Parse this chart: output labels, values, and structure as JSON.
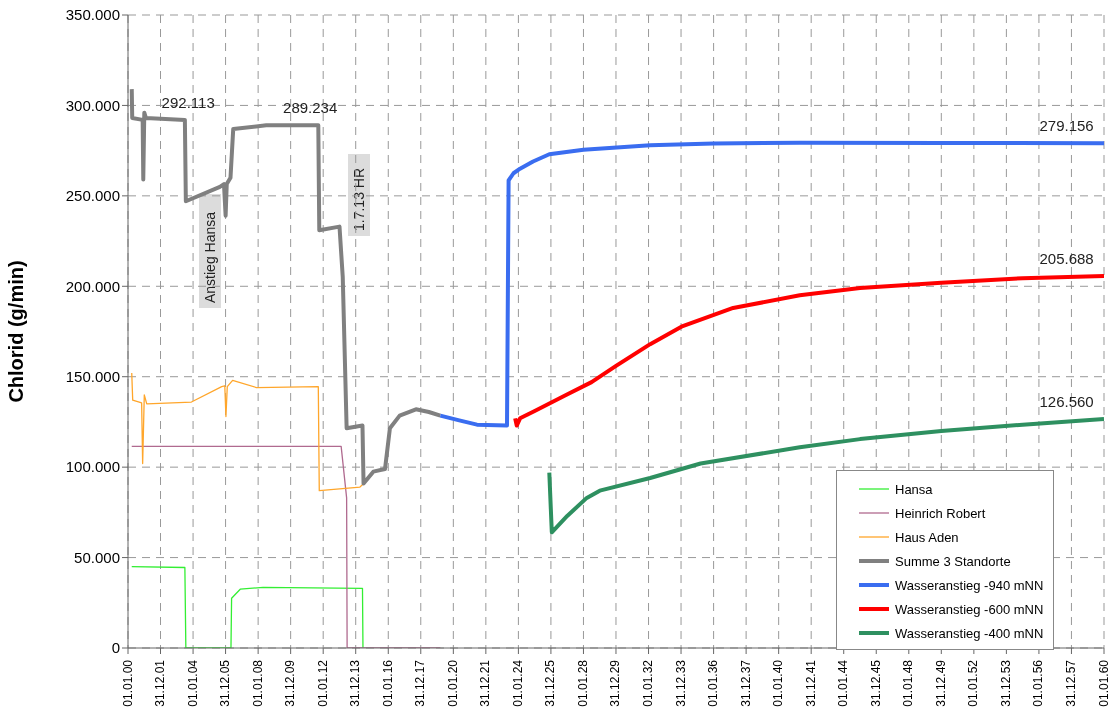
{
  "chart_data": {
    "type": "line",
    "ylabel": "Chlorid  (g/min)",
    "xlim": [
      "2000-01-01",
      "2060-01-01"
    ],
    "xticks": [
      {
        "value": "2000-01-01",
        "label": "01.01.00"
      },
      {
        "value": "2001-12-31",
        "label": "31.12.01"
      },
      {
        "value": "2004-01-01",
        "label": "01.01.04"
      },
      {
        "value": "2005-12-31",
        "label": "31.12.05"
      },
      {
        "value": "2008-01-01",
        "label": "01.01.08"
      },
      {
        "value": "2009-12-31",
        "label": "31.12.09"
      },
      {
        "value": "2012-01-01",
        "label": "01.01.12"
      },
      {
        "value": "2013-12-31",
        "label": "31.12.13"
      },
      {
        "value": "2016-01-01",
        "label": "01.01.16"
      },
      {
        "value": "2017-12-31",
        "label": "31.12.17"
      },
      {
        "value": "2020-01-01",
        "label": "01.01.20"
      },
      {
        "value": "2021-12-31",
        "label": "31.12.21"
      },
      {
        "value": "2024-01-01",
        "label": "01.01.24"
      },
      {
        "value": "2025-12-31",
        "label": "31.12.25"
      },
      {
        "value": "2028-01-01",
        "label": "01.01.28"
      },
      {
        "value": "2029-12-31",
        "label": "31.12.29"
      },
      {
        "value": "2032-01-01",
        "label": "01.01.32"
      },
      {
        "value": "2033-12-31",
        "label": "31.12.33"
      },
      {
        "value": "2036-01-01",
        "label": "01.01.36"
      },
      {
        "value": "2037-12-31",
        "label": "31.12.37"
      },
      {
        "value": "2040-01-01",
        "label": "01.01.40"
      },
      {
        "value": "2041-12-31",
        "label": "31.12.41"
      },
      {
        "value": "2044-01-01",
        "label": "01.01.44"
      },
      {
        "value": "2045-12-31",
        "label": "31.12.45"
      },
      {
        "value": "2048-01-01",
        "label": "01.01.48"
      },
      {
        "value": "2049-12-31",
        "label": "31.12.49"
      },
      {
        "value": "2052-01-01",
        "label": "01.01.52"
      },
      {
        "value": "2053-12-31",
        "label": "31.12.53"
      },
      {
        "value": "2056-01-01",
        "label": "01.01.56"
      },
      {
        "value": "2057-12-31",
        "label": "31.12.57"
      },
      {
        "value": "2060-01-01",
        "label": "01.01.60"
      }
    ],
    "ylim": [
      0,
      350000
    ],
    "yticks": [
      0,
      {
        "value": 50000,
        "label": "50.000"
      },
      {
        "value": 100000,
        "label": "100.000"
      },
      {
        "value": 150000,
        "label": "150.000"
      },
      {
        "value": 200000,
        "label": "200.000"
      },
      {
        "value": 250000,
        "label": "250.000"
      },
      {
        "value": 300000,
        "label": "300.000"
      },
      {
        "value": 350000,
        "label": "350.000"
      }
    ],
    "grid": true,
    "legend": "bottom right",
    "series": [
      {
        "name": "Hansa",
        "color": "#33ee33",
        "x": [
          "2000-03-25",
          "2003-07-01",
          "2003-07-23",
          "2006-05-01",
          "2006-05-15",
          "2006-11-25",
          "2008-04-20",
          "2014-06-01",
          "2014-06-12"
        ],
        "values": [
          45000,
          44500,
          0,
          0,
          27500,
          32500,
          33500,
          33000,
          0
        ]
      },
      {
        "name": "Heinrich Robert",
        "color": "#b06a8f",
        "x": [
          "2000-03-25",
          "2013-02-07",
          "2013-06-10",
          "2013-06-21",
          "2019-03-15"
        ],
        "values": [
          111500,
          111500,
          83000,
          0,
          0
        ]
      },
      {
        "name": "Haus Aden",
        "color": "#ffa62b",
        "x": [
          "2000-03-25",
          "2000-04-16",
          "2000-11-02",
          "2000-11-25",
          "2001-01-01",
          "2001-02-25",
          "2003-11-25",
          "2005-10-05",
          "2005-12-13",
          "2006-01-08",
          "2006-02-07",
          "2006-06-07",
          "2007-11-25",
          "2011-09-13",
          "2011-10-05",
          "2014-04-05",
          "2014-06-10"
        ],
        "values": [
          152000,
          137000,
          135500,
          102000,
          140000,
          135000,
          136000,
          144500,
          145000,
          128000,
          144500,
          148000,
          144000,
          144500,
          87000,
          89000,
          90500
        ]
      },
      {
        "name": "Summe 3 Standorte",
        "color": "#808080",
        "x": [
          "2000-03-25",
          "2000-04-05",
          "2000-11-25",
          "2000-12-09",
          "2001-01-01",
          "2001-02-07",
          "2003-07-01",
          "2003-07-23",
          "2005-08-25",
          "2005-11-25",
          "2006-01-01",
          "2006-01-26",
          "2006-04-20",
          "2006-06-21",
          "2008-07-01",
          "2011-09-13",
          "2011-10-05",
          "2013-01-01",
          "2013-03-15",
          "2013-06-10",
          "2014-06-01",
          "2014-06-25",
          "2015-01-30",
          "2015-10-20",
          "2016-02-07",
          "2016-09-13",
          "2017-09-13",
          "2018-07-01",
          "2019-03-15"
        ],
        "values": [
          309000,
          293000,
          292000,
          259000,
          296000,
          293000,
          292000,
          247000,
          255000,
          256500,
          239000,
          256500,
          260000,
          287000,
          289000,
          289000,
          231000,
          233000,
          205000,
          121500,
          123000,
          91000,
          97500,
          99000,
          121500,
          128500,
          132000,
          130500,
          128500
        ]
      },
      {
        "name": "Wasseranstieg -940 mNN",
        "color": "#3a6df0",
        "x": [
          "2019-03-15",
          "2020-04-20",
          "2021-06-15",
          "2023-04-20",
          "2023-05-26",
          "2023-09-13",
          "2024-02-07",
          "2024-11-25",
          "2025-11-25",
          "2028-01-01",
          "2032-02-07",
          "2036-01-01",
          "2041-04-20",
          "2050-01-01",
          "2060-01-01"
        ],
        "values": [
          128500,
          126000,
          123500,
          123000,
          258500,
          262500,
          265000,
          269000,
          273000,
          275500,
          278000,
          279000,
          279300,
          279200,
          279156
        ]
      },
      {
        "name": "Wasseranstieg -600 mNN",
        "color": "#ff0000",
        "x": [
          "2023-10-20",
          "2023-11-25",
          "2024-02-07",
          "2025-01-01",
          "2026-12-16",
          "2028-07-01",
          "2030-01-01",
          "2032-02-07",
          "2034-02-07",
          "2037-03-15",
          "2041-04-20",
          "2045-01-01",
          "2050-01-01",
          "2055-01-01",
          "2060-01-01"
        ],
        "values": [
          127000,
          123000,
          127000,
          131000,
          140000,
          147000,
          156000,
          168000,
          178000,
          188000,
          195000,
          199000,
          202000,
          204500,
          205688
        ]
      },
      {
        "name": "Wasseranstieg -400 mNN",
        "color": "#2e9060",
        "x": [
          "2025-11-25",
          "2026-01-20",
          "2027-01-01",
          "2028-03-15",
          "2029-01-01",
          "2032-02-07",
          "2035-03-15",
          "2041-04-20",
          "2045-01-01",
          "2050-01-01",
          "2055-01-01",
          "2060-01-01"
        ],
        "values": [
          97000,
          64000,
          73000,
          83000,
          87000,
          94000,
          102000,
          111000,
          115500,
          120000,
          123500,
          126560
        ]
      }
    ],
    "annotations": [
      "Anstieg Hansa",
      "1.7.13 HR",
      {
        "text": "292.113",
        "x": "2003-09-13",
        "y": 292113
      },
      {
        "text": "289.234",
        "x": "2011-03-15",
        "y": 289234
      },
      {
        "text": "279.156",
        "x": "2057-09-13",
        "y": 279156
      },
      {
        "text": "205.688",
        "x": "2057-09-13",
        "y": 205688
      },
      {
        "text": "126.560",
        "x": "2057-09-13",
        "y": 126560
      }
    ]
  }
}
